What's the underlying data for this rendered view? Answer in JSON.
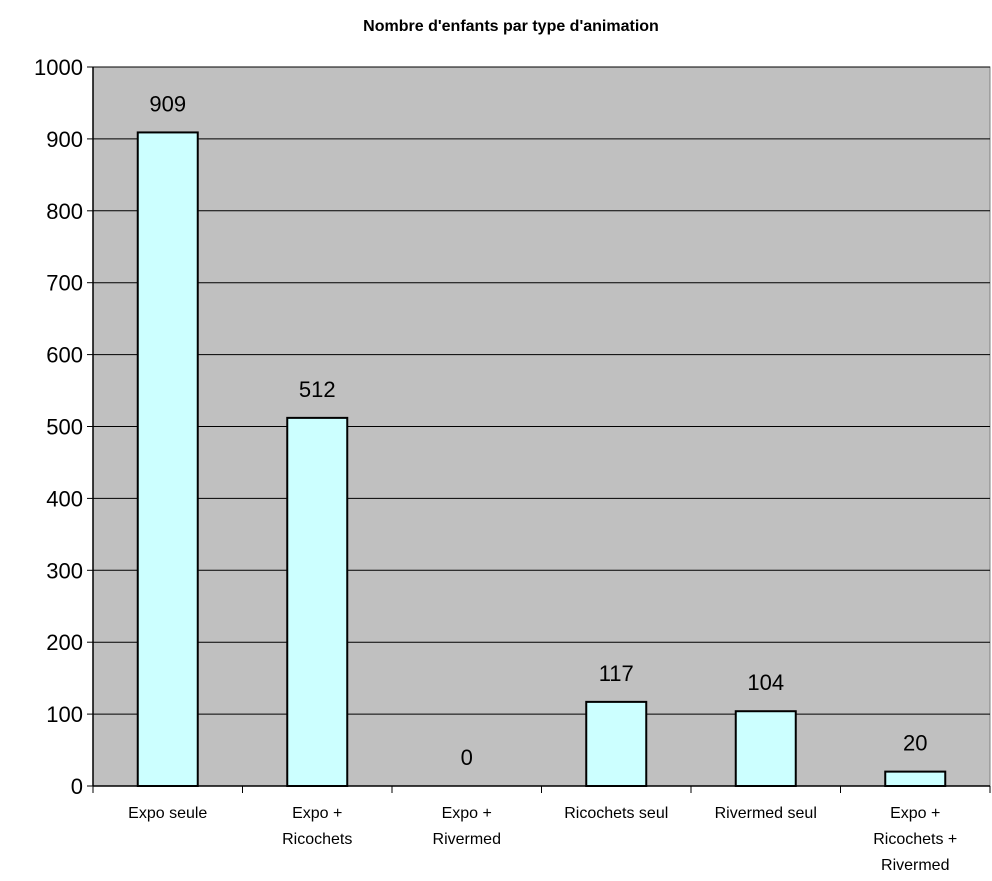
{
  "chart_data": {
    "type": "bar",
    "title": "Nombre d'enfants par type d'animation",
    "xlabel": "",
    "ylabel": "",
    "categories": [
      [
        "Expo seule"
      ],
      [
        "Expo +",
        "Ricochets"
      ],
      [
        "Expo +",
        "Rivermed"
      ],
      [
        "Ricochets seul"
      ],
      [
        "Rivermed seul"
      ],
      [
        "Expo +",
        "Ricochets +",
        "Rivermed"
      ]
    ],
    "values": [
      909,
      512,
      0,
      117,
      104,
      20
    ],
    "data_labels": [
      "909",
      "512",
      "0",
      "117",
      "104",
      "20"
    ],
    "ylim": [
      0,
      1000
    ],
    "yticks": [
      0,
      100,
      200,
      300,
      400,
      500,
      600,
      700,
      800,
      900,
      1000
    ],
    "grid": true,
    "legend": "none",
    "colors": {
      "plot_background": "#c0c0c0",
      "bar_fill": "#ccffff",
      "bar_stroke": "#000000",
      "grid": "#000000"
    }
  }
}
